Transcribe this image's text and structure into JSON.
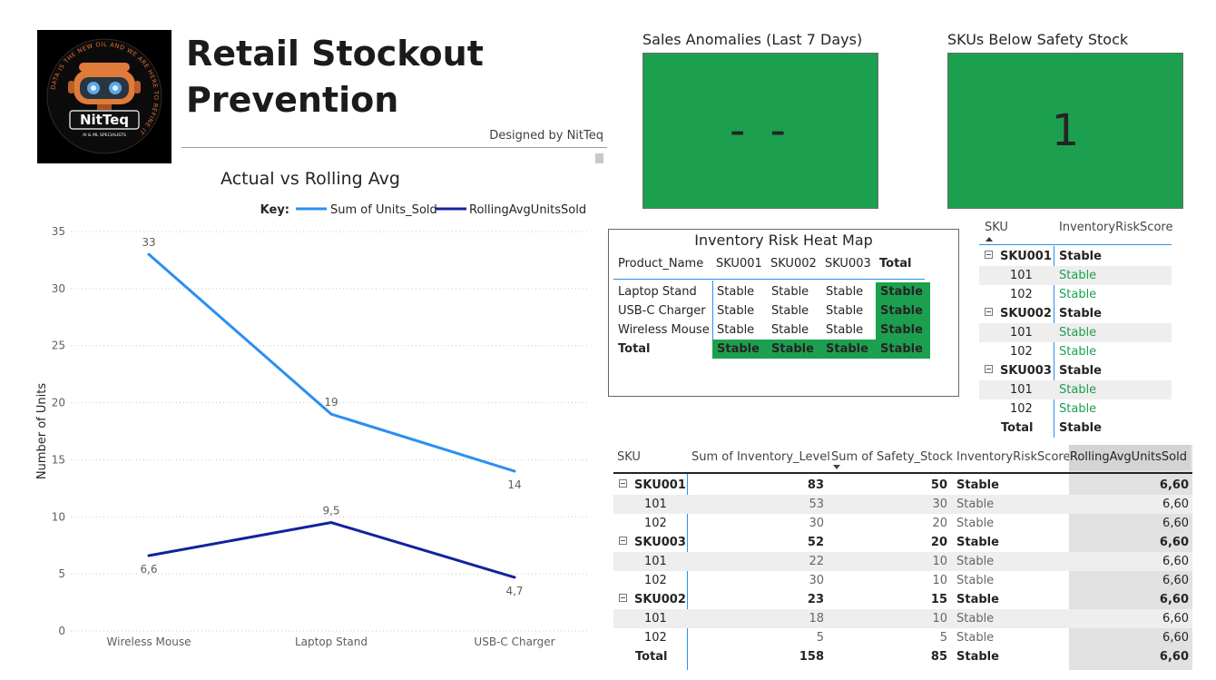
{
  "header": {
    "title_line1": "Retail Stockout",
    "title_line2": "Prevention",
    "designed_by": "Designed by NitTeq",
    "logo": {
      "name": "NitTeq",
      "tagline": "AI & ML SPECIALISTS",
      "ring_text": "DATA IS THE NEW OIL AND WE ARE HERE TO REFINE IT"
    }
  },
  "kpis": [
    {
      "label": "Sales Anomalies (Last 7 Days)",
      "value": "- -"
    },
    {
      "label": "SKUs Below Safety Stock",
      "value": "1"
    }
  ],
  "colors": {
    "kpi_green": "#1ca04f",
    "series_actual": "#2b8ff0",
    "series_rolling": "#12239e"
  },
  "chart_data": {
    "type": "line",
    "title": "Actual vs Rolling Avg",
    "legend_key_label": "Key:",
    "legend_position": "top-right",
    "xlabel": "",
    "ylabel": "Number of Units",
    "ylim": [
      0,
      35
    ],
    "yticks": [
      "0",
      "5",
      "10",
      "15",
      "20",
      "25",
      "30",
      "35"
    ],
    "grid": true,
    "categories": [
      "Wireless Mouse",
      "Laptop Stand",
      "USB-C Charger"
    ],
    "series": [
      {
        "name": "Sum of Units_Sold",
        "values": [
          33,
          19,
          14
        ],
        "labels": [
          "33",
          "19",
          "14"
        ]
      },
      {
        "name": "RollingAvgUnitsSold",
        "values": [
          6.6,
          9.5,
          4.7
        ],
        "labels": [
          "6,6",
          "9,5",
          "4,7"
        ]
      }
    ]
  },
  "heatmap": {
    "title": "Inventory Risk Heat Map",
    "row_header": "Product_Name",
    "columns": [
      "SKU001",
      "SKU002",
      "SKU003",
      "Total"
    ],
    "rows": [
      {
        "name": "Laptop Stand",
        "cells": [
          "Stable",
          "Stable",
          "Stable",
          "Stable"
        ]
      },
      {
        "name": "USB-C Charger",
        "cells": [
          "Stable",
          "Stable",
          "Stable",
          "Stable"
        ]
      },
      {
        "name": "Wireless Mouse",
        "cells": [
          "Stable",
          "Stable",
          "Stable",
          "Stable"
        ]
      },
      {
        "name": "Total",
        "cells": [
          "Stable",
          "Stable",
          "Stable",
          "Stable"
        ]
      }
    ]
  },
  "risk_matrix": {
    "headers": [
      "SKU",
      "InventoryRiskScore"
    ],
    "rows": [
      {
        "sku": "SKU001",
        "value": "Stable",
        "level": "group"
      },
      {
        "sku": "101",
        "value": "Stable",
        "level": "child"
      },
      {
        "sku": "102",
        "value": "Stable",
        "level": "child"
      },
      {
        "sku": "SKU002",
        "value": "Stable",
        "level": "group"
      },
      {
        "sku": "101",
        "value": "Stable",
        "level": "child"
      },
      {
        "sku": "102",
        "value": "Stable",
        "level": "child"
      },
      {
        "sku": "SKU003",
        "value": "Stable",
        "level": "group"
      },
      {
        "sku": "101",
        "value": "Stable",
        "level": "child"
      },
      {
        "sku": "102",
        "value": "Stable",
        "level": "child"
      },
      {
        "sku": "Total",
        "value": "Stable",
        "level": "total"
      }
    ]
  },
  "inventory_table": {
    "headers": [
      "SKU",
      "Sum of Inventory_Level",
      "Sum of Safety_Stock",
      "InventoryRiskScore",
      "RollingAvgUnitsSold"
    ],
    "sorted_column": "Sum of Safety_Stock",
    "rows": [
      {
        "sku": "SKU001",
        "inv": "83",
        "safety": "50",
        "risk": "Stable",
        "rolling": "6,60",
        "level": "group"
      },
      {
        "sku": "101",
        "inv": "53",
        "safety": "30",
        "risk": "Stable",
        "rolling": "6,60",
        "level": "child"
      },
      {
        "sku": "102",
        "inv": "30",
        "safety": "20",
        "risk": "Stable",
        "rolling": "6,60",
        "level": "child"
      },
      {
        "sku": "SKU003",
        "inv": "52",
        "safety": "20",
        "risk": "Stable",
        "rolling": "6,60",
        "level": "group"
      },
      {
        "sku": "101",
        "inv": "22",
        "safety": "10",
        "risk": "Stable",
        "rolling": "6,60",
        "level": "child"
      },
      {
        "sku": "102",
        "inv": "30",
        "safety": "10",
        "risk": "Stable",
        "rolling": "6,60",
        "level": "child"
      },
      {
        "sku": "SKU002",
        "inv": "23",
        "safety": "15",
        "risk": "Stable",
        "rolling": "6,60",
        "level": "group"
      },
      {
        "sku": "101",
        "inv": "18",
        "safety": "10",
        "risk": "Stable",
        "rolling": "6,60",
        "level": "child"
      },
      {
        "sku": "102",
        "inv": "5",
        "safety": "5",
        "risk": "Stable",
        "rolling": "6,60",
        "level": "child"
      },
      {
        "sku": "Total",
        "inv": "158",
        "safety": "85",
        "risk": "Stable",
        "rolling": "6,60",
        "level": "total"
      }
    ]
  }
}
